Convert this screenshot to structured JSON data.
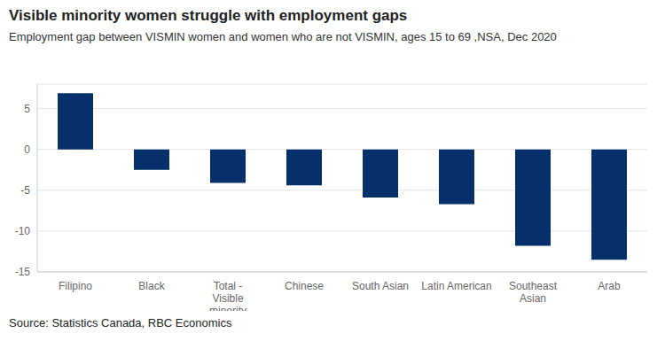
{
  "chart_data": {
    "type": "bar",
    "title": "Visible minority women struggle with employment gaps",
    "subtitle": "Employment gap between VISMIN women and women who are not VISMIN, ages 15 to 69 ,NSA, Dec 2020",
    "source": "Source: Statistics Canada, RBC Economics",
    "categories": [
      "Filipino",
      "Black",
      "Total - Visible minority",
      "Chinese",
      "South Asian",
      "Latin American",
      "Southeast Asian",
      "Arab"
    ],
    "values": [
      6.9,
      -2.5,
      -4.1,
      -4.4,
      -5.9,
      -6.7,
      -11.8,
      -13.5
    ],
    "color": "#06306b",
    "ylim": [
      -15,
      8
    ],
    "yticks": [
      -15,
      -10,
      -5,
      0,
      5
    ],
    "grid": true
  }
}
